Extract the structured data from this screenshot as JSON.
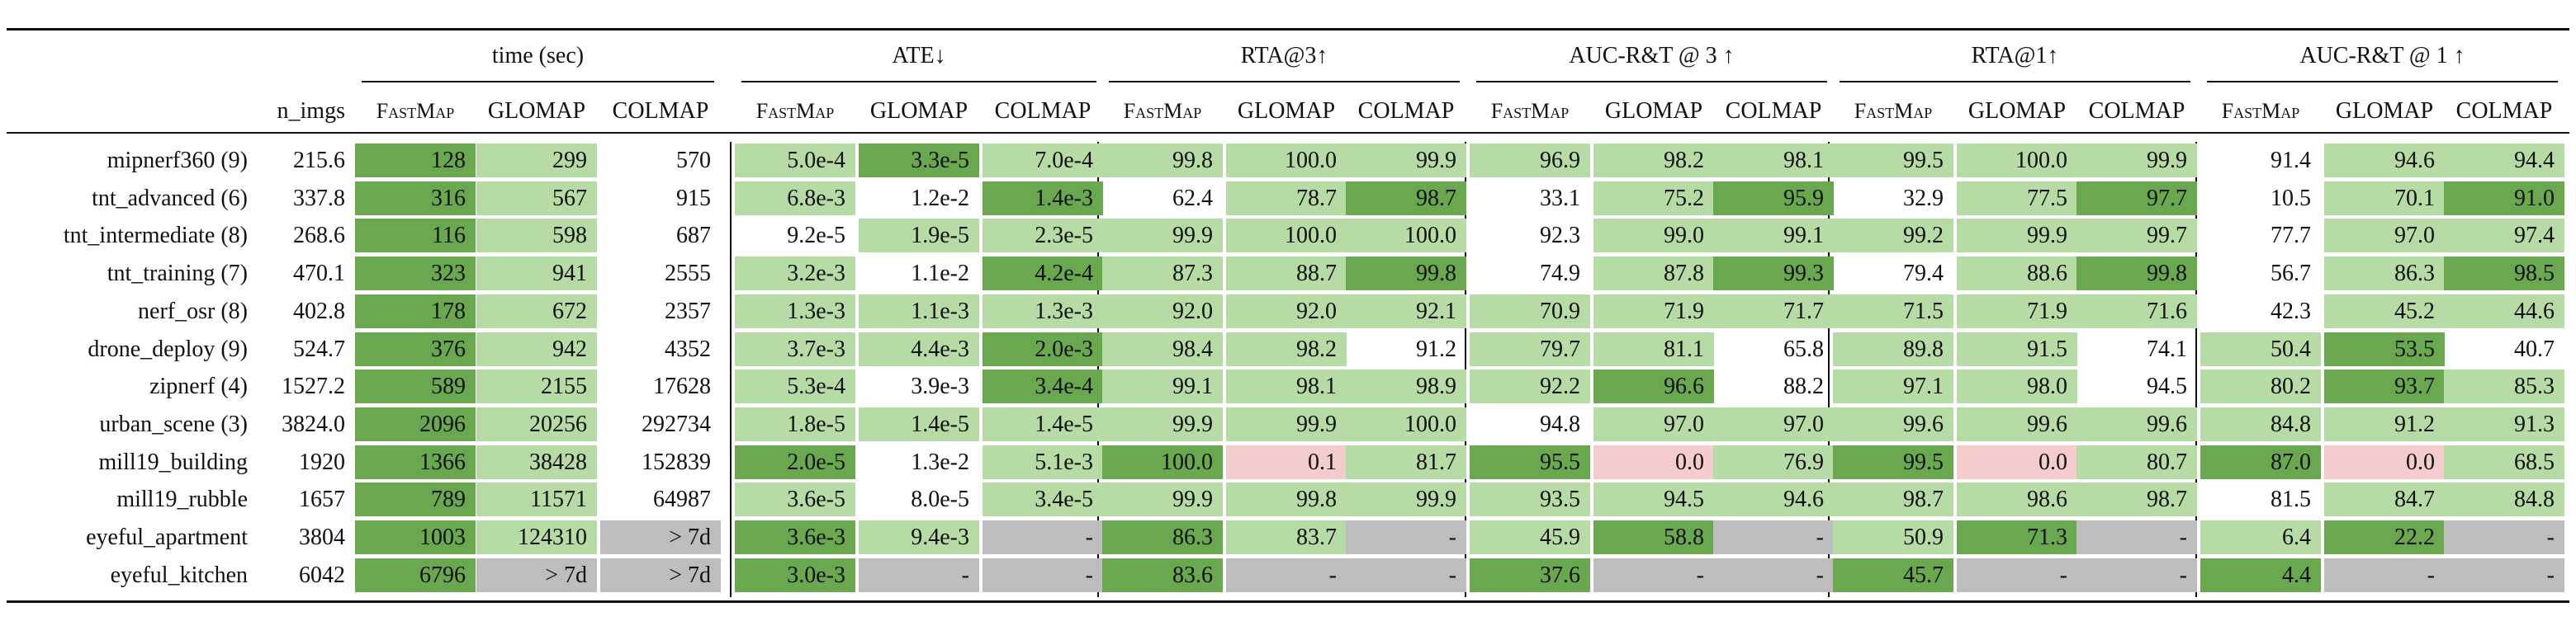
{
  "groups": [
    "time (sec)",
    "ATE↓",
    "RTA@3↑",
    "AUC-R&T @ 3 ↑",
    "RTA@1↑",
    "AUC-R&T @ 1 ↑"
  ],
  "n_imgs_label": "n_imgs",
  "methods": [
    "FastMap",
    "GLOMAP",
    "COLMAP"
  ],
  "colors": {
    "dark": "#6aa84f",
    "light": "#b7dba4",
    "red": "#f4cccc",
    "gray": "#bdbdbd"
  },
  "rows": [
    {
      "name": "mipnerf360 (9)",
      "n": "215.6",
      "cells": [
        [
          "128",
          "d"
        ],
        [
          "299",
          "l"
        ],
        [
          "570",
          "n"
        ],
        [
          "5.0e-4",
          "l"
        ],
        [
          "3.3e-5",
          "d"
        ],
        [
          "7.0e-4",
          "l"
        ],
        [
          "99.8",
          "l"
        ],
        [
          "100.0",
          "l"
        ],
        [
          "99.9",
          "l"
        ],
        [
          "96.9",
          "l"
        ],
        [
          "98.2",
          "l"
        ],
        [
          "98.1",
          "l"
        ],
        [
          "99.5",
          "l"
        ],
        [
          "100.0",
          "l"
        ],
        [
          "99.9",
          "l"
        ],
        [
          "91.4",
          "n"
        ],
        [
          "94.6",
          "l"
        ],
        [
          "94.4",
          "l"
        ]
      ]
    },
    {
      "name": "tnt_advanced (6)",
      "n": "337.8",
      "cells": [
        [
          "316",
          "d"
        ],
        [
          "567",
          "l"
        ],
        [
          "915",
          "n"
        ],
        [
          "6.8e-3",
          "l"
        ],
        [
          "1.2e-2",
          "n"
        ],
        [
          "1.4e-3",
          "d"
        ],
        [
          "62.4",
          "n"
        ],
        [
          "78.7",
          "l"
        ],
        [
          "98.7",
          "d"
        ],
        [
          "33.1",
          "n"
        ],
        [
          "75.2",
          "l"
        ],
        [
          "95.9",
          "d"
        ],
        [
          "32.9",
          "n"
        ],
        [
          "77.5",
          "l"
        ],
        [
          "97.7",
          "d"
        ],
        [
          "10.5",
          "n"
        ],
        [
          "70.1",
          "l"
        ],
        [
          "91.0",
          "d"
        ]
      ]
    },
    {
      "name": "tnt_intermediate (8)",
      "n": "268.6",
      "cells": [
        [
          "116",
          "d"
        ],
        [
          "598",
          "l"
        ],
        [
          "687",
          "n"
        ],
        [
          "9.2e-5",
          "n"
        ],
        [
          "1.9e-5",
          "l"
        ],
        [
          "2.3e-5",
          "l"
        ],
        [
          "99.9",
          "l"
        ],
        [
          "100.0",
          "l"
        ],
        [
          "100.0",
          "l"
        ],
        [
          "92.3",
          "n"
        ],
        [
          "99.0",
          "l"
        ],
        [
          "99.1",
          "l"
        ],
        [
          "99.2",
          "l"
        ],
        [
          "99.9",
          "l"
        ],
        [
          "99.7",
          "l"
        ],
        [
          "77.7",
          "n"
        ],
        [
          "97.0",
          "l"
        ],
        [
          "97.4",
          "l"
        ]
      ]
    },
    {
      "name": "tnt_training (7)",
      "n": "470.1",
      "cells": [
        [
          "323",
          "d"
        ],
        [
          "941",
          "l"
        ],
        [
          "2555",
          "n"
        ],
        [
          "3.2e-3",
          "l"
        ],
        [
          "1.1e-2",
          "n"
        ],
        [
          "4.2e-4",
          "d"
        ],
        [
          "87.3",
          "l"
        ],
        [
          "88.7",
          "l"
        ],
        [
          "99.8",
          "d"
        ],
        [
          "74.9",
          "n"
        ],
        [
          "87.8",
          "l"
        ],
        [
          "99.3",
          "d"
        ],
        [
          "79.4",
          "n"
        ],
        [
          "88.6",
          "l"
        ],
        [
          "99.8",
          "d"
        ],
        [
          "56.7",
          "n"
        ],
        [
          "86.3",
          "l"
        ],
        [
          "98.5",
          "d"
        ]
      ]
    },
    {
      "name": "nerf_osr (8)",
      "n": "402.8",
      "cells": [
        [
          "178",
          "d"
        ],
        [
          "672",
          "l"
        ],
        [
          "2357",
          "n"
        ],
        [
          "1.3e-3",
          "l"
        ],
        [
          "1.1e-3",
          "l"
        ],
        [
          "1.3e-3",
          "l"
        ],
        [
          "92.0",
          "l"
        ],
        [
          "92.0",
          "l"
        ],
        [
          "92.1",
          "l"
        ],
        [
          "70.9",
          "l"
        ],
        [
          "71.9",
          "l"
        ],
        [
          "71.7",
          "l"
        ],
        [
          "71.5",
          "l"
        ],
        [
          "71.9",
          "l"
        ],
        [
          "71.6",
          "l"
        ],
        [
          "42.3",
          "n"
        ],
        [
          "45.2",
          "l"
        ],
        [
          "44.6",
          "l"
        ]
      ]
    },
    {
      "name": "drone_deploy (9)",
      "n": "524.7",
      "cells": [
        [
          "376",
          "d"
        ],
        [
          "942",
          "l"
        ],
        [
          "4352",
          "n"
        ],
        [
          "3.7e-3",
          "l"
        ],
        [
          "4.4e-3",
          "l"
        ],
        [
          "2.0e-3",
          "d"
        ],
        [
          "98.4",
          "l"
        ],
        [
          "98.2",
          "l"
        ],
        [
          "91.2",
          "n"
        ],
        [
          "79.7",
          "l"
        ],
        [
          "81.1",
          "l"
        ],
        [
          "65.8",
          "n"
        ],
        [
          "89.8",
          "l"
        ],
        [
          "91.5",
          "l"
        ],
        [
          "74.1",
          "n"
        ],
        [
          "50.4",
          "l"
        ],
        [
          "53.5",
          "d"
        ],
        [
          "40.7",
          "n"
        ]
      ]
    },
    {
      "name": "zipnerf (4)",
      "n": "1527.2",
      "cells": [
        [
          "589",
          "d"
        ],
        [
          "2155",
          "l"
        ],
        [
          "17628",
          "n"
        ],
        [
          "5.3e-4",
          "l"
        ],
        [
          "3.9e-3",
          "n"
        ],
        [
          "3.4e-4",
          "d"
        ],
        [
          "99.1",
          "l"
        ],
        [
          "98.1",
          "l"
        ],
        [
          "98.9",
          "l"
        ],
        [
          "92.2",
          "l"
        ],
        [
          "96.6",
          "d"
        ],
        [
          "88.2",
          "n"
        ],
        [
          "97.1",
          "l"
        ],
        [
          "98.0",
          "l"
        ],
        [
          "94.5",
          "n"
        ],
        [
          "80.2",
          "l"
        ],
        [
          "93.7",
          "d"
        ],
        [
          "85.3",
          "l"
        ]
      ]
    },
    {
      "name": "urban_scene (3)",
      "n": "3824.0",
      "cells": [
        [
          "2096",
          "d"
        ],
        [
          "20256",
          "l"
        ],
        [
          "292734",
          "n"
        ],
        [
          "1.8e-5",
          "l"
        ],
        [
          "1.4e-5",
          "l"
        ],
        [
          "1.4e-5",
          "l"
        ],
        [
          "99.9",
          "l"
        ],
        [
          "99.9",
          "l"
        ],
        [
          "100.0",
          "l"
        ],
        [
          "94.8",
          "n"
        ],
        [
          "97.0",
          "l"
        ],
        [
          "97.0",
          "l"
        ],
        [
          "99.6",
          "l"
        ],
        [
          "99.6",
          "l"
        ],
        [
          "99.6",
          "l"
        ],
        [
          "84.8",
          "l"
        ],
        [
          "91.2",
          "l"
        ],
        [
          "91.3",
          "l"
        ]
      ]
    },
    {
      "name": "mill19_building",
      "n": "1920",
      "cells": [
        [
          "1366",
          "d"
        ],
        [
          "38428",
          "l"
        ],
        [
          "152839",
          "n"
        ],
        [
          "2.0e-5",
          "d"
        ],
        [
          "1.3e-2",
          "n"
        ],
        [
          "5.1e-3",
          "l"
        ],
        [
          "100.0",
          "d"
        ],
        [
          "0.1",
          "r"
        ],
        [
          "81.7",
          "l"
        ],
        [
          "95.5",
          "d"
        ],
        [
          "0.0",
          "r"
        ],
        [
          "76.9",
          "l"
        ],
        [
          "99.5",
          "d"
        ],
        [
          "0.0",
          "r"
        ],
        [
          "80.7",
          "l"
        ],
        [
          "87.0",
          "d"
        ],
        [
          "0.0",
          "r"
        ],
        [
          "68.5",
          "l"
        ]
      ]
    },
    {
      "name": "mill19_rubble",
      "n": "1657",
      "cells": [
        [
          "789",
          "d"
        ],
        [
          "11571",
          "l"
        ],
        [
          "64987",
          "n"
        ],
        [
          "3.6e-5",
          "l"
        ],
        [
          "8.0e-5",
          "n"
        ],
        [
          "3.4e-5",
          "l"
        ],
        [
          "99.9",
          "l"
        ],
        [
          "99.8",
          "l"
        ],
        [
          "99.9",
          "l"
        ],
        [
          "93.5",
          "l"
        ],
        [
          "94.5",
          "l"
        ],
        [
          "94.6",
          "l"
        ],
        [
          "98.7",
          "l"
        ],
        [
          "98.6",
          "l"
        ],
        [
          "98.7",
          "l"
        ],
        [
          "81.5",
          "n"
        ],
        [
          "84.7",
          "l"
        ],
        [
          "84.8",
          "l"
        ]
      ]
    },
    {
      "name": "eyeful_apartment",
      "n": "3804",
      "cells": [
        [
          "1003",
          "d"
        ],
        [
          "124310",
          "l"
        ],
        [
          "> 7d",
          "g"
        ],
        [
          "3.6e-3",
          "d"
        ],
        [
          "9.4e-3",
          "l"
        ],
        [
          "-",
          "g"
        ],
        [
          "86.3",
          "d"
        ],
        [
          "83.7",
          "l"
        ],
        [
          "-",
          "g"
        ],
        [
          "45.9",
          "l"
        ],
        [
          "58.8",
          "d"
        ],
        [
          "-",
          "g"
        ],
        [
          "50.9",
          "l"
        ],
        [
          "71.3",
          "d"
        ],
        [
          "-",
          "g"
        ],
        [
          "6.4",
          "l"
        ],
        [
          "22.2",
          "d"
        ],
        [
          "-",
          "g"
        ]
      ]
    },
    {
      "name": "eyeful_kitchen",
      "n": "6042",
      "cells": [
        [
          "6796",
          "d"
        ],
        [
          "> 7d",
          "g"
        ],
        [
          "> 7d",
          "g"
        ],
        [
          "3.0e-3",
          "d"
        ],
        [
          "-",
          "g"
        ],
        [
          "-",
          "g"
        ],
        [
          "83.6",
          "d"
        ],
        [
          "-",
          "g"
        ],
        [
          "-",
          "g"
        ],
        [
          "37.6",
          "d"
        ],
        [
          "-",
          "g"
        ],
        [
          "-",
          "g"
        ],
        [
          "45.7",
          "d"
        ],
        [
          "-",
          "g"
        ],
        [
          "-",
          "g"
        ],
        [
          "4.4",
          "d"
        ],
        [
          "-",
          "g"
        ],
        [
          "-",
          "g"
        ]
      ]
    }
  ]
}
